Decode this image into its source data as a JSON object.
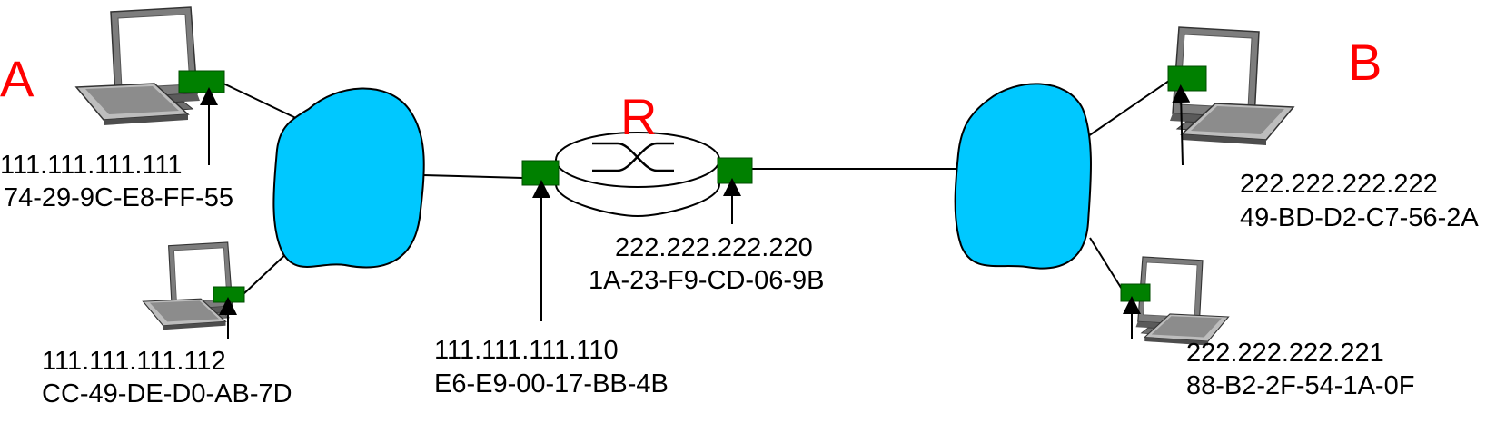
{
  "labels": {
    "host_a": "A",
    "host_b": "B",
    "router": "R"
  },
  "hosts": {
    "a_main": {
      "ip": "111.111.111.111",
      "mac": "74-29-9C-E8-FF-55"
    },
    "a_second": {
      "ip": "111.111.111.112",
      "mac": "CC-49-DE-D0-AB-7D"
    },
    "b_main": {
      "ip": "222.222.222.222",
      "mac": "49-BD-D2-C7-56-2A"
    },
    "b_second": {
      "ip": "222.222.222.221",
      "mac": "88-B2-2F-54-1A-0F"
    }
  },
  "router_interfaces": {
    "left": {
      "ip": "111.111.111.110",
      "mac": "E6-E9-00-17-BB-4B"
    },
    "right": {
      "ip": "222.222.222.220",
      "mac": "1A-23-F9-CD-06-9B"
    }
  },
  "colors": {
    "network_cloud": "#00c8ff",
    "interface_card": "#008000",
    "node_label": "#ff0000",
    "line": "#000000"
  }
}
